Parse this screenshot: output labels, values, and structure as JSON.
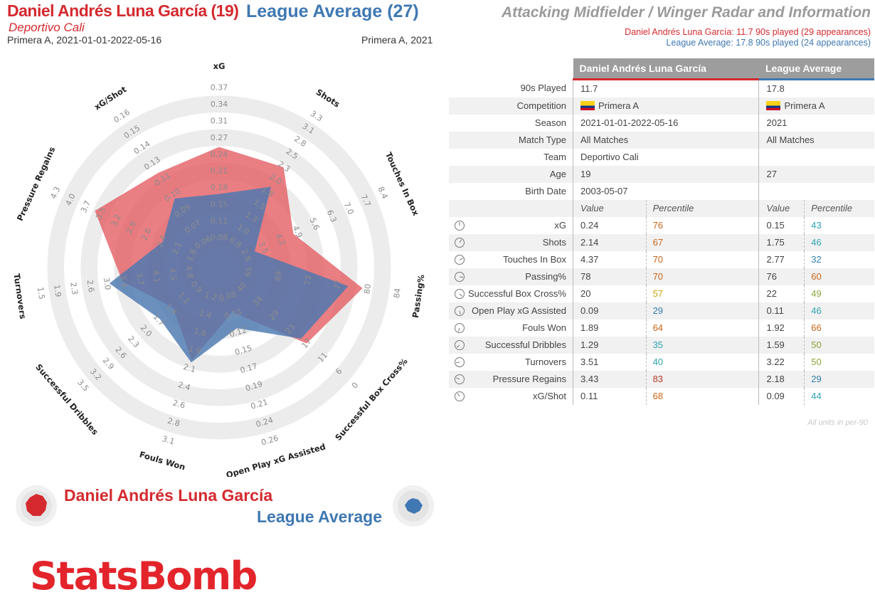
{
  "header": {
    "player_name": "Daniel Andrés Luna García (19)",
    "player_team": "Deportivo Cali",
    "player_competition": "Primera A, 2021-01-01-2022-05-16",
    "league_name": "League Average (27)",
    "league_competition": "Primera A, 2021",
    "radar_title": "Attacking Midfielder / Winger Radar and Information",
    "summary_player": "Daniel Andrés Luna García: 11.7 90s played (29 appearances)",
    "summary_league": "League Average: 17.8 90s played (24 appearances)"
  },
  "legend": {
    "player": "Daniel Andrés Luna García",
    "league": "League Average"
  },
  "logo": "StatsBomb",
  "colors": {
    "player": "#d42a2f",
    "league": "#3f78b2",
    "player_fill": "#e35a60",
    "league_fill": "#4a78b0",
    "rings": "#ececec",
    "pct_orange": "#c9661a",
    "pct_yellow": "#c9a20a",
    "pct_green": "#8aa63a",
    "pct_teal": "#2ea3b0",
    "pct_blue": "#2f7fb0",
    "pct_red": "#b53b26"
  },
  "table": {
    "player_header": "Daniel Andrés Luna García",
    "league_header": "League Average",
    "info_rows": [
      {
        "label": "90s Played",
        "player": "11.7",
        "league": "17.8"
      },
      {
        "label": "Competition",
        "player": "Primera A",
        "league": "Primera A",
        "flag": true
      },
      {
        "label": "Season",
        "player": "2021-01-01-2022-05-16",
        "league": "2021"
      },
      {
        "label": "Match Type",
        "player": "All Matches",
        "league": "All Matches"
      },
      {
        "label": "Team",
        "player": "Deportivo Cali",
        "league": ""
      },
      {
        "label": "Age",
        "player": "19",
        "league": "27"
      },
      {
        "label": "Birth Date",
        "player": "2003-05-07",
        "league": ""
      }
    ],
    "value_header": "Value",
    "percentile_header": "Percentile",
    "metric_rows": [
      {
        "label": "xG",
        "pv": "0.24",
        "pp": "76",
        "pc": "pct_orange",
        "lv": "0.15",
        "lp": "43",
        "lc": "pct_teal"
      },
      {
        "label": "Shots",
        "pv": "2.14",
        "pp": "67",
        "pc": "pct_orange",
        "lv": "1.75",
        "lp": "46",
        "lc": "pct_teal"
      },
      {
        "label": "Touches In Box",
        "pv": "4.37",
        "pp": "70",
        "pc": "pct_orange",
        "lv": "2.77",
        "lp": "32",
        "lc": "pct_blue"
      },
      {
        "label": "Passing%",
        "pv": "78",
        "pp": "70",
        "pc": "pct_orange",
        "lv": "76",
        "lp": "60",
        "lc": "pct_orange"
      },
      {
        "label": "Successful Box Cross%",
        "pv": "20",
        "pp": "57",
        "pc": "pct_yellow",
        "lv": "22",
        "lp": "49",
        "lc": "pct_green"
      },
      {
        "label": "Open Play xG Assisted",
        "pv": "0.09",
        "pp": "29",
        "pc": "pct_blue",
        "lv": "0.11",
        "lp": "46",
        "lc": "pct_teal"
      },
      {
        "label": "Fouls Won",
        "pv": "1.89",
        "pp": "64",
        "pc": "pct_orange",
        "lv": "1.92",
        "lp": "66",
        "lc": "pct_orange"
      },
      {
        "label": "Successful Dribbles",
        "pv": "1.29",
        "pp": "35",
        "pc": "pct_teal",
        "lv": "1.59",
        "lp": "50",
        "lc": "pct_green"
      },
      {
        "label": "Turnovers",
        "pv": "3.51",
        "pp": "40",
        "pc": "pct_teal",
        "lv": "3.22",
        "lp": "50",
        "lc": "pct_green"
      },
      {
        "label": "Pressure Regains",
        "pv": "3.43",
        "pp": "83",
        "pc": "pct_red",
        "lv": "2.18",
        "lp": "29",
        "lc": "pct_blue"
      },
      {
        "label": "xG/Shot",
        "pv": "0.11",
        "pp": "68",
        "pc": "pct_orange",
        "lv": "0.09",
        "lp": "44",
        "lc": "pct_teal"
      }
    ],
    "units_note": "All units in per-90"
  },
  "chart_data": {
    "type": "radar",
    "axes": [
      {
        "label": "xG",
        "ticks": [
          "0.08",
          "0.11",
          "0.15",
          "0.18",
          "0.21",
          "0.24",
          "0.27",
          "0.31",
          "0.34",
          "0.37"
        ],
        "min": 0.05,
        "max": 0.37
      },
      {
        "label": "Shots",
        "ticks": [
          "0.8",
          "1.0",
          "1.3",
          "1.5",
          "1.8",
          "2.0",
          "2.3",
          "2.5",
          "2.8",
          "3.1",
          "3.3"
        ],
        "min": 0.5,
        "max": 3.3
      },
      {
        "label": "Touches In Box",
        "ticks": [
          "2.8",
          "3.5",
          "4.2",
          "4.9",
          "5.6",
          "6.3",
          "7.0",
          "7.7",
          "8.4"
        ],
        "min": 2.1,
        "max": 8.4
      },
      {
        "label": "Passing%",
        "ticks": [
          "65",
          "69",
          "73",
          "77",
          "80",
          "84"
        ],
        "min": 61,
        "max": 84
      },
      {
        "label": "Successful Box Cross%",
        "ticks": [
          "40",
          "34",
          "29",
          "23",
          "17",
          "11",
          "6",
          "0"
        ],
        "min": 46,
        "max": 0
      },
      {
        "label": "Open Play xG Assisted",
        "ticks": [
          "0.08",
          "0.10",
          "0.12",
          "0.15",
          "0.17",
          "0.19",
          "0.21",
          "0.24",
          "0.26"
        ],
        "min": 0.06,
        "max": 0.26
      },
      {
        "label": "Fouls Won",
        "ticks": [
          "1.2",
          "1.4",
          "1.6",
          "1.9",
          "2.1",
          "2.4",
          "2.6",
          "2.8",
          "3.1"
        ],
        "min": 0.9,
        "max": 3.1
      },
      {
        "label": "Successful Dribbles",
        "ticks": [
          "0.9",
          "1.1",
          "1.4",
          "1.7",
          "2.0",
          "2.3",
          "2.6",
          "2.9",
          "3.2",
          "3.5"
        ],
        "min": 0.6,
        "max": 3.5
      },
      {
        "label": "Turnovers",
        "ticks": [
          "4.8",
          "4.5",
          "4.1",
          "3.7",
          "3.4",
          "3.0",
          "2.6",
          "2.3",
          "1.9",
          "1.5"
        ],
        "min": 5.2,
        "max": 1.5
      },
      {
        "label": "Pressure Regains",
        "ticks": [
          "1.8",
          "2.1",
          "2.4",
          "2.6",
          "2.9",
          "3.2",
          "3.5",
          "3.7",
          "4.0",
          "4.3"
        ],
        "min": 1.5,
        "max": 4.3
      },
      {
        "label": "xG/Shot",
        "ticks": [
          "0.06",
          "0.07",
          "0.09",
          "0.10",
          "0.11",
          "0.13",
          "0.14",
          "0.15",
          "0.16"
        ],
        "min": 0.05,
        "max": 0.16
      }
    ],
    "series": [
      {
        "name": "Daniel Andrés Luna García",
        "values": [
          0.24,
          2.14,
          4.37,
          78,
          20,
          0.09,
          1.89,
          1.29,
          3.51,
          3.43,
          0.11
        ]
      },
      {
        "name": "League Average",
        "values": [
          0.15,
          1.75,
          2.77,
          76,
          22,
          0.11,
          1.92,
          1.59,
          3.22,
          2.18,
          0.09
        ]
      }
    ]
  }
}
